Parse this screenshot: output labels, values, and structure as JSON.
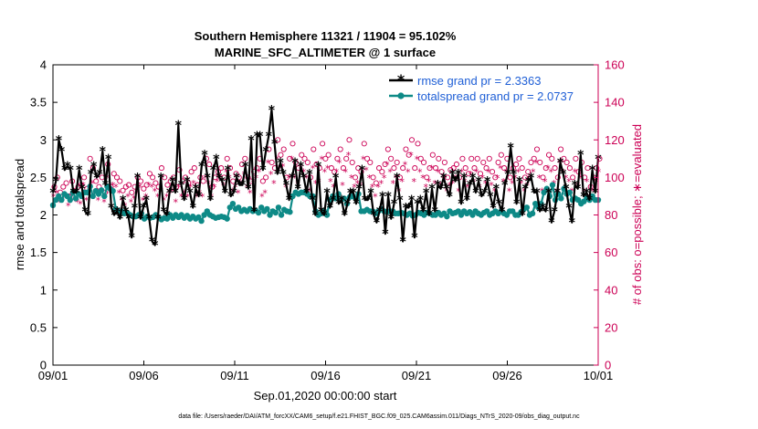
{
  "chart_data": {
    "type": "line",
    "title": "Southern Hemisphere 11321 / 11904 = 95.102%",
    "subtitle": "MARINE_SFC_ALTIMETER @ 1 surface",
    "xlabel": "Sep.01,2020 00:00:00 start",
    "ylabel_left": "rmse and totalspread",
    "ylabel_right": "# of obs: o=possible; ∗=evaluated",
    "footer": "data file: /Users/raeder/DAI/ATM_forcXX/CAM6_setup/f.e21.FHIST_BGC.f09_025.CAM6assim.011/Diags_NTrS_2020-09/obs_diag_output.nc",
    "xlim": [
      0,
      30
    ],
    "ylim_left": [
      0,
      4
    ],
    "ylim_right": [
      0,
      160
    ],
    "x_ticks": [
      0,
      5,
      10,
      15,
      20,
      25,
      30
    ],
    "x_tick_labels": [
      "09/01",
      "09/06",
      "09/11",
      "09/16",
      "09/21",
      "09/26",
      "10/01"
    ],
    "y_ticks_left": [
      "0",
      "0.5",
      "1",
      "1.5",
      "2",
      "2.5",
      "3",
      "3.5",
      "4"
    ],
    "y_ticks_right": [
      "0",
      "20",
      "40",
      "60",
      "80",
      "100",
      "120",
      "140",
      "160"
    ],
    "colors": {
      "rmse": "#000000",
      "spread": "#0e8a87",
      "obs": "#cc0055",
      "legend_text": "#1f5fd6"
    },
    "legend_position": "top-right",
    "series": [
      {
        "name": "rmse grand pr = 2.3363",
        "axis": "left",
        "values": [
          2.3,
          2.45,
          3.0,
          2.85,
          2.6,
          2.65,
          2.6,
          2.3,
          2.3,
          2.6,
          2.35,
          2.05,
          2.0,
          2.55,
          2.65,
          2.5,
          2.55,
          2.85,
          2.4,
          2.75,
          2.1,
          2.0,
          2.05,
          1.95,
          2.2,
          2.05,
          1.95,
          1.7,
          2.1,
          2.5,
          1.95,
          2.1,
          2.2,
          1.95,
          1.65,
          1.6,
          1.95,
          2.5,
          2.05,
          2.0,
          2.3,
          2.45,
          2.3,
          3.2,
          2.4,
          2.2,
          2.45,
          2.3,
          2.1,
          2.35,
          2.25,
          2.65,
          2.8,
          2.5,
          2.2,
          2.6,
          2.75,
          2.5,
          2.45,
          2.3,
          2.6,
          2.25,
          2.3,
          2.5,
          2.4,
          2.4,
          2.65,
          2.35,
          3.0,
          2.05,
          3.05,
          3.05,
          2.6,
          2.85,
          3.05,
          3.4,
          2.95,
          2.55,
          2.7,
          2.55,
          2.4,
          2.2,
          2.5,
          2.7,
          2.35,
          2.65,
          2.5,
          2.3,
          2.55,
          2.2,
          2.0,
          2.65,
          2.05,
          2.0,
          2.3,
          2.1,
          2.2,
          2.5,
          2.15,
          2.2,
          2.0,
          2.15,
          2.3,
          2.3,
          2.15,
          2.35,
          2.6,
          2.2,
          2.2,
          2.3,
          2.0,
          1.9,
          2.05,
          2.25,
          1.75,
          2.25,
          1.95,
          2.15,
          2.5,
          2.2,
          1.65,
          2.1,
          2.1,
          2.2,
          1.7,
          2.15,
          2.2,
          2.05,
          2.3,
          2.0,
          2.35,
          2.05,
          2.4,
          2.35,
          2.5,
          2.35,
          2.25,
          2.55,
          2.45,
          2.55,
          2.15,
          2.5,
          2.2,
          2.4,
          2.5,
          2.3,
          2.45,
          2.25,
          2.3,
          2.45,
          2.25,
          2.1,
          2.35,
          2.15,
          2.05,
          2.4,
          2.55,
          2.9,
          2.55,
          2.15,
          2.45,
          2.0,
          2.35,
          2.45,
          2.5,
          2.3,
          2.3,
          2.05,
          2.1,
          2.05,
          2.3,
          1.9,
          2.05,
          2.3,
          2.7,
          2.55,
          2.35,
          2.1,
          1.9,
          2.4,
          2.35,
          2.8,
          2.25,
          2.3,
          2.2,
          2.6,
          2.3,
          2.75
        ]
      },
      {
        "name": "totalspread grand pr = 2.0737",
        "axis": "left",
        "values": [
          2.13,
          2.2,
          2.25,
          2.2,
          2.28,
          2.25,
          2.2,
          2.3,
          2.22,
          2.28,
          2.25,
          2.3,
          2.3,
          2.38,
          2.25,
          2.32,
          2.28,
          2.33,
          2.25,
          2.38,
          2.35,
          2.32,
          2.08,
          2.05,
          2.05,
          2.02,
          2.03,
          2.0,
          1.98,
          1.98,
          2.0,
          2.02,
          1.95,
          1.98,
          1.96,
          1.97,
          2.0,
          1.97,
          1.94,
          1.96,
          1.95,
          2.0,
          1.96,
          2.0,
          1.97,
          2.0,
          1.96,
          1.99,
          1.95,
          1.98,
          1.95,
          1.97,
          1.92,
          2.0,
          2.05,
          2.0,
          1.98,
          1.96,
          1.97,
          1.98,
          1.97,
          1.95,
          2.1,
          2.15,
          2.08,
          2.1,
          2.05,
          2.07,
          2.05,
          2.08,
          2.05,
          2.06,
          2.03,
          2.1,
          2.05,
          2.08,
          2.0,
          2.05,
          2.03,
          2.1,
          2.0,
          2.07,
          2.05,
          2.04,
          2.25,
          2.3,
          2.28,
          2.3,
          2.3,
          2.28,
          2.25,
          2.25,
          2.05,
          2.0,
          2.02,
          2.05,
          2.0,
          2.2,
          2.25,
          2.22,
          2.28,
          2.2,
          2.22,
          2.15,
          2.24,
          2.25,
          2.22,
          2.28,
          2.05,
          2.05,
          2.07,
          2.05,
          2.05,
          2.02,
          2.05,
          2.08,
          2.05,
          2.04,
          2.05,
          2.05,
          2.02,
          2.02,
          2.03,
          2.02,
          2.0,
          2.02,
          1.99,
          2.0,
          2.03,
          2.02,
          2.0,
          2.03,
          2.02,
          2.0,
          2.0,
          2.03,
          2.0,
          2.02,
          1.98,
          2.05,
          2.02,
          2.03,
          2.05,
          2.0,
          2.05,
          2.02,
          2.04,
          2.0,
          2.05,
          2.02,
          2.0,
          2.03,
          2.05,
          2.0,
          2.02,
          2.05,
          2.02,
          2.05,
          2.02,
          2.0,
          2.05,
          2.05,
          2.0,
          2.0,
          2.04,
          2.08,
          2.1,
          2.0,
          2.02,
          2.15,
          2.1,
          2.15,
          2.3,
          2.35,
          2.25,
          2.4,
          2.2,
          2.28,
          2.22,
          2.35,
          2.28,
          2.3,
          2.2,
          2.22,
          2.2,
          2.15,
          2.18,
          2.22,
          2.2,
          2.25,
          2.2,
          2.2
        ]
      },
      {
        "name": "possible (o)",
        "axis": "right",
        "values": [
          95,
          100,
          92,
          95,
          97,
          90,
          98,
          93,
          95,
          96,
          100,
          94,
          110,
          105,
          98,
          95,
          100,
          92,
          107,
          95,
          102,
          100,
          98,
          93,
          95,
          96,
          92,
          95,
          100,
          98,
          94,
          96,
          102,
          100,
          97,
          95,
          105,
          100,
          96,
          98,
          100,
          95,
          104,
          98,
          100,
          97,
          103,
          105,
          96,
          100,
          98,
          110,
          107,
          95,
          100,
          103,
          105,
          100,
          110,
          105,
          98,
          102,
          100,
          107,
          110,
          100,
          98,
          103,
          105,
          110,
          98,
          100,
          115,
          108,
          105,
          120,
          112,
          115,
          100,
          110,
          118,
          108,
          105,
          112,
          110,
          108,
          100,
          115,
          107,
          105,
          118,
          110,
          112,
          105,
          103,
          110,
          115,
          105,
          110,
          120,
          108,
          100,
          105,
          103,
          118,
          110,
          108,
          100,
          97,
          105,
          103,
          107,
          115,
          110,
          105,
          108,
          100,
          105,
          115,
          112,
          120,
          105,
          118,
          110,
          108,
          100,
          105,
          112,
          105,
          110,
          103,
          108,
          100,
          104,
          105,
          107,
          100,
          110,
          105,
          102,
          110,
          105,
          110,
          102,
          108,
          105,
          110,
          103,
          100,
          108,
          112,
          105,
          110,
          100,
          105,
          107,
          110,
          105,
          100,
          103,
          108,
          110,
          115,
          108,
          100,
          105,
          112,
          110,
          105,
          100,
          115,
          110,
          108,
          105,
          100,
          110,
          103,
          108,
          100,
          105,
          95,
          100,
          105,
          110
        ]
      },
      {
        "name": "evaluated (∗)",
        "axis": "right",
        "values": [
          90,
          92,
          87,
          88,
          90,
          85,
          90,
          88,
          87,
          86,
          96,
          88,
          93,
          97,
          92,
          88,
          93,
          87,
          100,
          92,
          96,
          95,
          92,
          88,
          85,
          90,
          87,
          89,
          92,
          95,
          88,
          90,
          96,
          95,
          93,
          90,
          93,
          88,
          90,
          92,
          93,
          87,
          95,
          90,
          92,
          90,
          95,
          97,
          90,
          92,
          90,
          100,
          97,
          90,
          95,
          98,
          100,
          96,
          103,
          100,
          93,
          95,
          92,
          97,
          102,
          95,
          92,
          98,
          100,
          103,
          90,
          92,
          108,
          102,
          97,
          110,
          105,
          106,
          95,
          100,
          110,
          100,
          97,
          105,
          103,
          100,
          93,
          105,
          97,
          98,
          110,
          103,
          105,
          98,
          95,
          103,
          108,
          96,
          103,
          112,
          100,
          95,
          97,
          96,
          110,
          104,
          100,
          95,
          90,
          95,
          97,
          100,
          107,
          103,
          97,
          100,
          93,
          98,
          107,
          103,
          112,
          98,
          110,
          103,
          100,
          95,
          98,
          105,
          97,
          103,
          96,
          100,
          93,
          96,
          97,
          100,
          93,
          103,
          98,
          95,
          102,
          98,
          103,
          95,
          100,
          97,
          103,
          96,
          93,
          100,
          105,
          98,
          103,
          93,
          97,
          100,
          103,
          97,
          93,
          96,
          100,
          103,
          108,
          100,
          93,
          98,
          105,
          103,
          97,
          93,
          108,
          103,
          100,
          98,
          93,
          103,
          96,
          100,
          93,
          98,
          90,
          93,
          98,
          103
        ]
      }
    ]
  }
}
